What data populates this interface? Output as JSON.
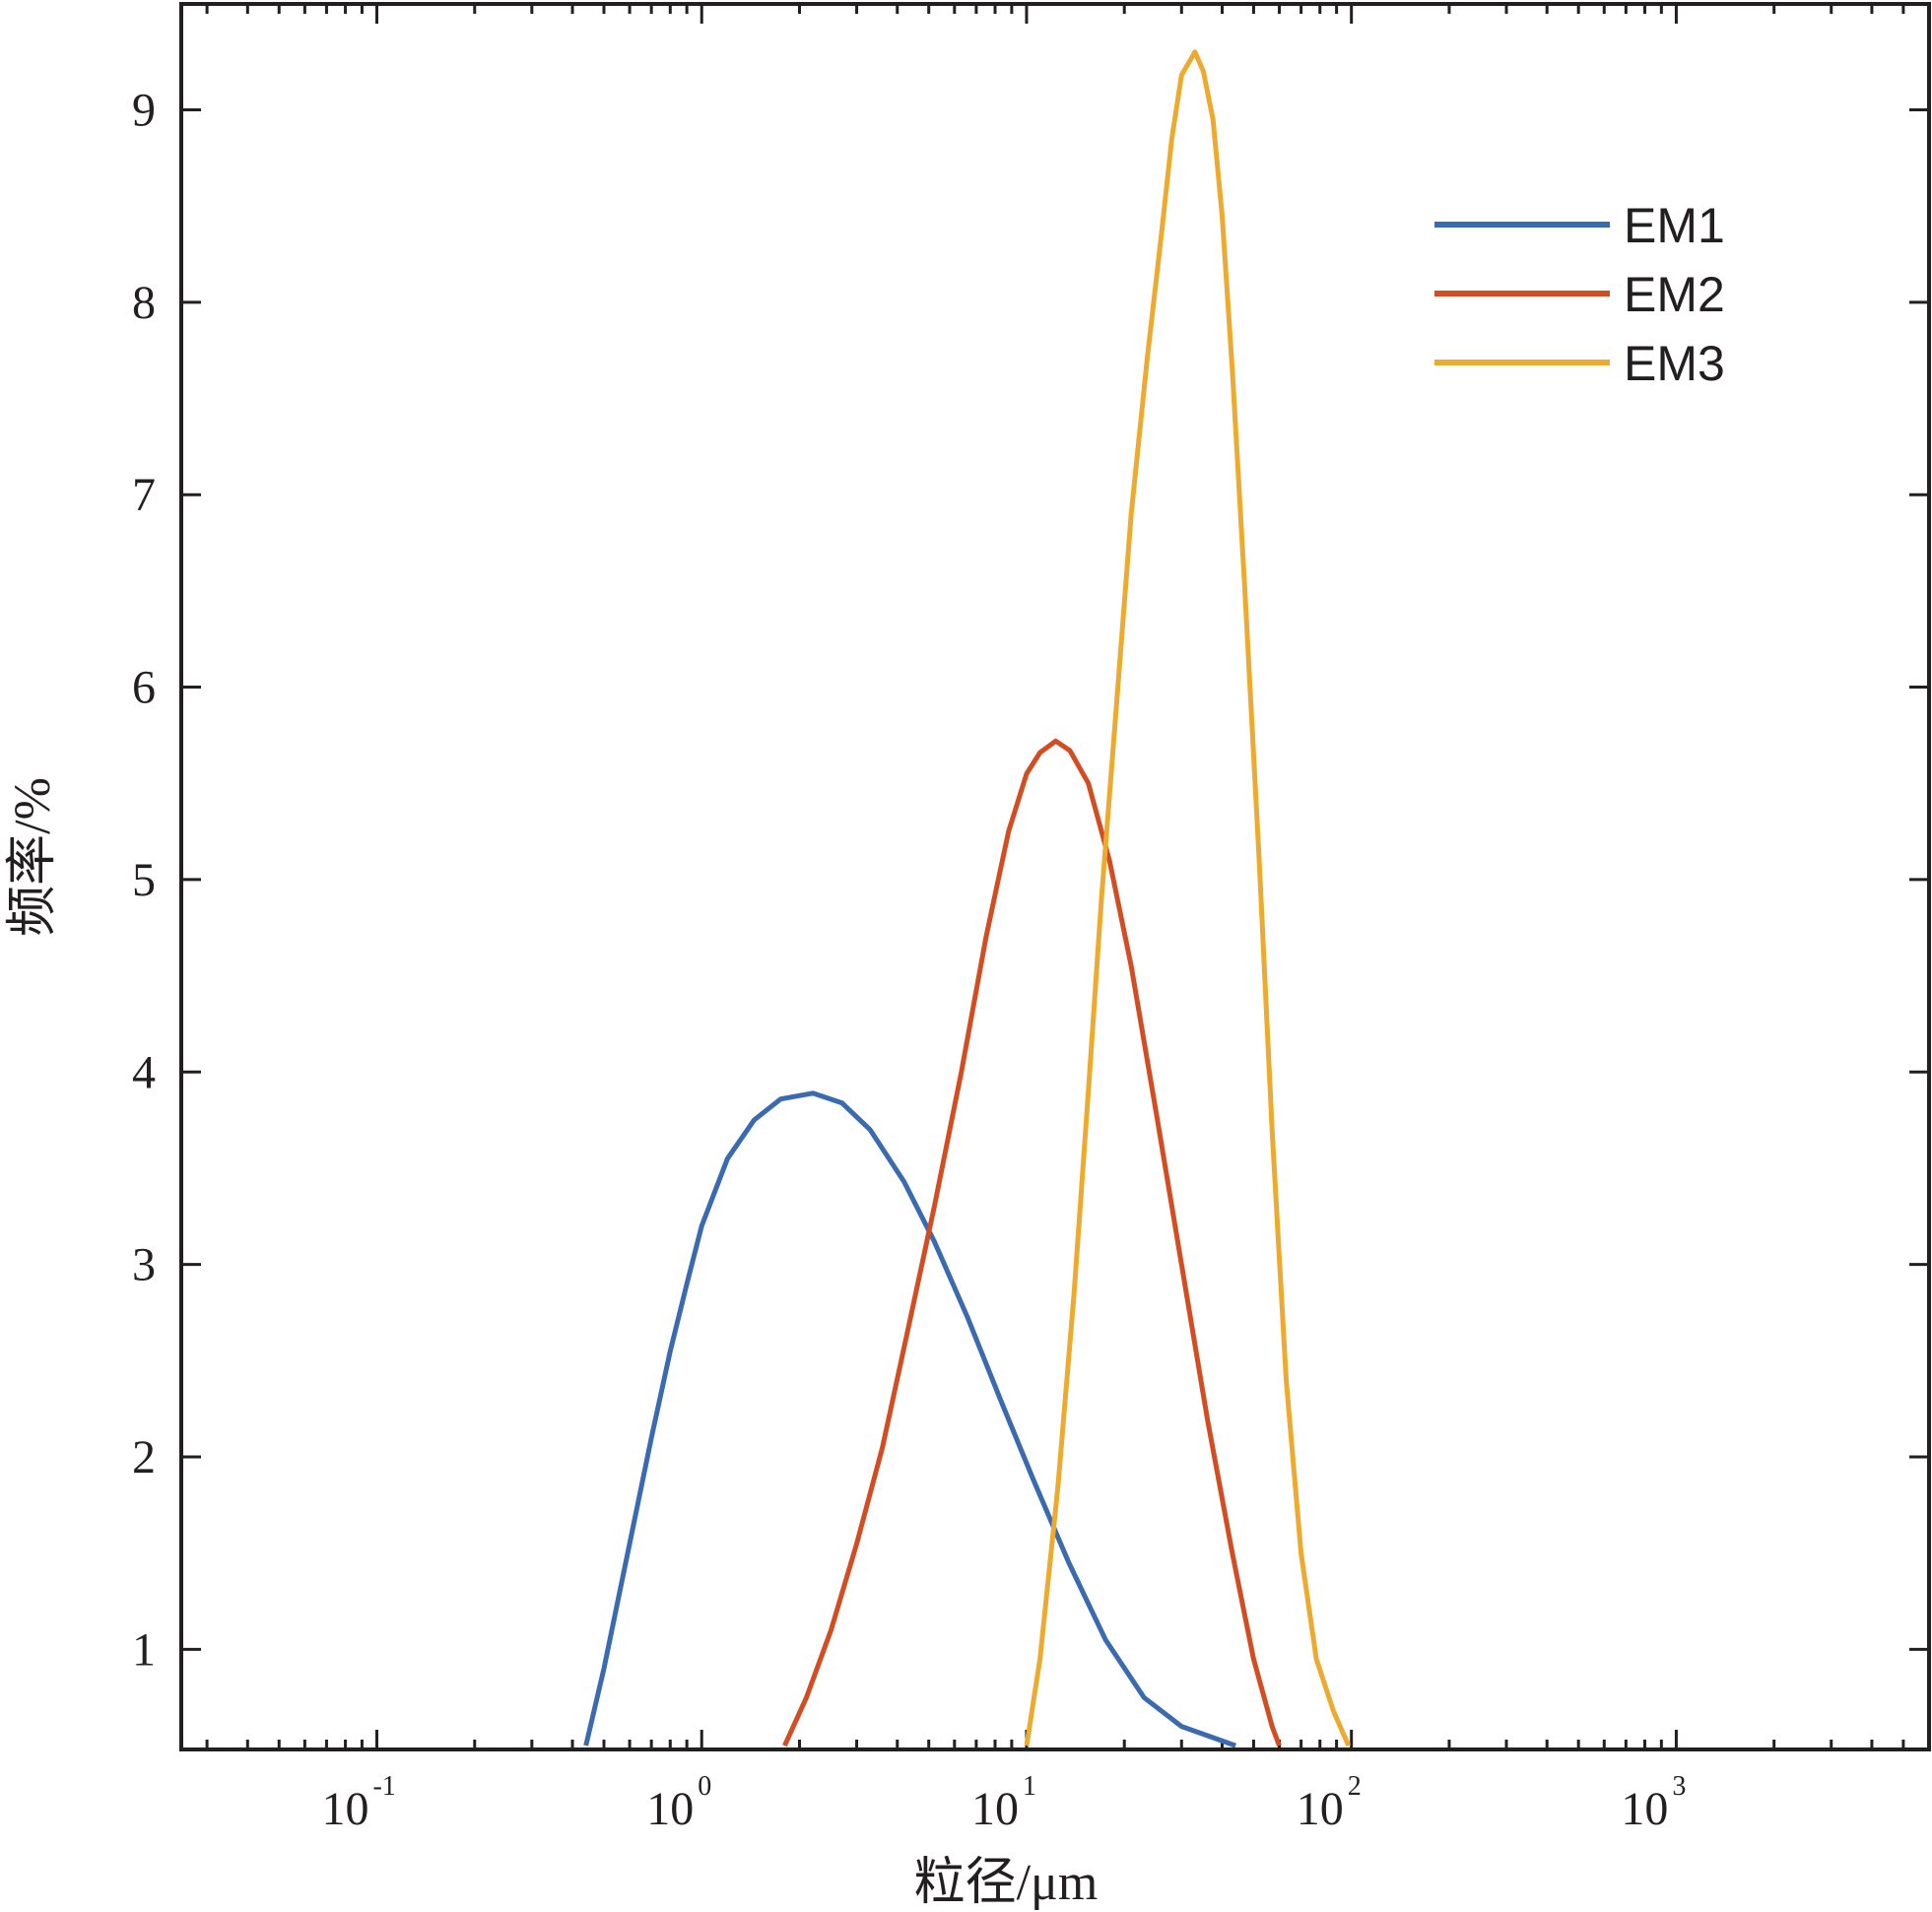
{
  "chart_data": {
    "type": "line",
    "xlabel": "粒径/μm",
    "ylabel": "频率/%",
    "x_scale": "log",
    "xlim": [
      0.025,
      6000
    ],
    "ylim": [
      0.48,
      9.55
    ],
    "x_ticks": [
      {
        "base": "10",
        "exp": "-1",
        "value": 0.1
      },
      {
        "base": "10",
        "exp": "0",
        "value": 1
      },
      {
        "base": "10",
        "exp": "1",
        "value": 10
      },
      {
        "base": "10",
        "exp": "2",
        "value": 100
      },
      {
        "base": "10",
        "exp": "3",
        "value": 1000
      }
    ],
    "y_ticks": [
      "1",
      "2",
      "3",
      "4",
      "5",
      "6",
      "7",
      "8",
      "9"
    ],
    "grid": false,
    "legend_position": "top-right",
    "series": [
      {
        "name": "EM1",
        "color": "#3a6ab0",
        "points": [
          [
            0.44,
            0.5
          ],
          [
            0.5,
            0.9
          ],
          [
            0.6,
            1.55
          ],
          [
            0.7,
            2.1
          ],
          [
            0.8,
            2.55
          ],
          [
            0.9,
            2.9
          ],
          [
            1.0,
            3.2
          ],
          [
            1.2,
            3.55
          ],
          [
            1.45,
            3.75
          ],
          [
            1.75,
            3.86
          ],
          [
            2.2,
            3.89
          ],
          [
            2.7,
            3.84
          ],
          [
            3.3,
            3.7
          ],
          [
            4.2,
            3.43
          ],
          [
            5.2,
            3.12
          ],
          [
            6.6,
            2.72
          ],
          [
            8.3,
            2.3
          ],
          [
            10.5,
            1.88
          ],
          [
            13.5,
            1.45
          ],
          [
            17.5,
            1.05
          ],
          [
            23.0,
            0.75
          ],
          [
            30.0,
            0.6
          ],
          [
            44.0,
            0.5
          ]
        ]
      },
      {
        "name": "EM2",
        "color": "#d24e22",
        "points": [
          [
            1.8,
            0.5
          ],
          [
            2.1,
            0.75
          ],
          [
            2.5,
            1.1
          ],
          [
            3.0,
            1.55
          ],
          [
            3.6,
            2.05
          ],
          [
            4.3,
            2.65
          ],
          [
            5.2,
            3.3
          ],
          [
            6.3,
            4.0
          ],
          [
            7.5,
            4.7
          ],
          [
            8.8,
            5.25
          ],
          [
            10.0,
            5.55
          ],
          [
            11.0,
            5.66
          ],
          [
            12.3,
            5.72
          ],
          [
            13.6,
            5.67
          ],
          [
            15.5,
            5.5
          ],
          [
            18.0,
            5.1
          ],
          [
            21.0,
            4.55
          ],
          [
            25.0,
            3.8
          ],
          [
            30.0,
            3.0
          ],
          [
            36.0,
            2.2
          ],
          [
            43.0,
            1.5
          ],
          [
            50.0,
            0.95
          ],
          [
            57.0,
            0.6
          ],
          [
            60.0,
            0.5
          ]
        ]
      },
      {
        "name": "EM3",
        "color": "#ecab2f",
        "points": [
          [
            10.0,
            0.5
          ],
          [
            11.0,
            0.95
          ],
          [
            12.5,
            1.85
          ],
          [
            14.0,
            2.85
          ],
          [
            15.5,
            3.9
          ],
          [
            17.0,
            4.9
          ],
          [
            19.0,
            5.95
          ],
          [
            21.0,
            6.9
          ],
          [
            23.5,
            7.7
          ],
          [
            26.0,
            8.35
          ],
          [
            28.0,
            8.85
          ],
          [
            30.0,
            9.18
          ],
          [
            33.0,
            9.3
          ],
          [
            35.0,
            9.2
          ],
          [
            37.5,
            8.95
          ],
          [
            40.0,
            8.45
          ],
          [
            43.0,
            7.65
          ],
          [
            47.0,
            6.5
          ],
          [
            52.0,
            5.1
          ],
          [
            57.0,
            3.7
          ],
          [
            63.0,
            2.4
          ],
          [
            70.0,
            1.5
          ],
          [
            78.0,
            0.95
          ],
          [
            88.0,
            0.68
          ],
          [
            98.0,
            0.5
          ]
        ]
      }
    ]
  }
}
